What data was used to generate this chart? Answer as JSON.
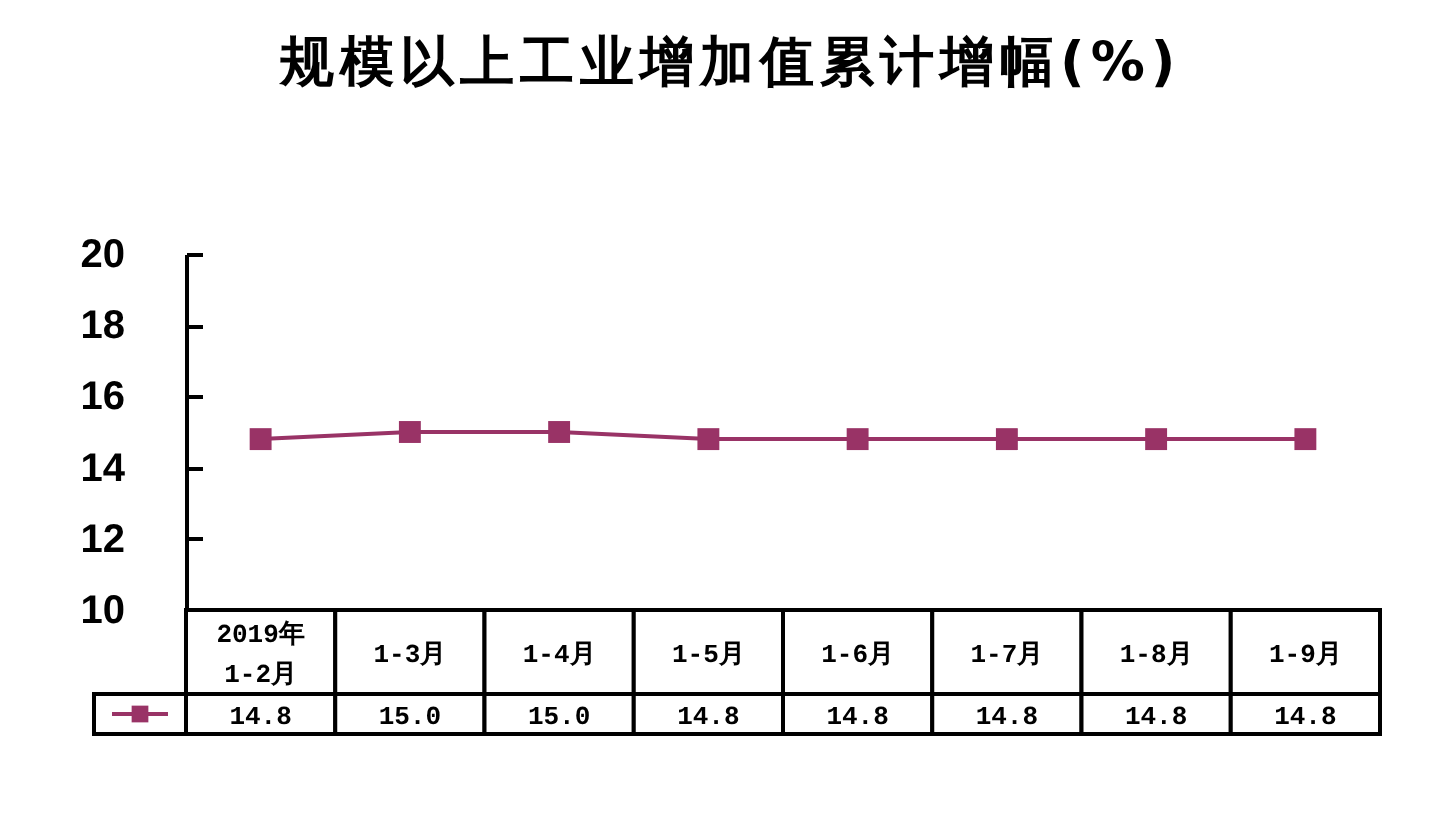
{
  "chart_data": {
    "type": "line",
    "title": "规模以上工业增加值累计增幅(%)",
    "categories": [
      "2019年\n1-2月",
      "1-3月",
      "1-4月",
      "1-5月",
      "1-6月",
      "1-7月",
      "1-8月",
      "1-9月"
    ],
    "series": [
      {
        "color": "#993366",
        "values": [
          14.8,
          15.0,
          15.0,
          14.8,
          14.8,
          14.8,
          14.8,
          14.8
        ],
        "value_labels": [
          "14.8",
          "15.0",
          "15.0",
          "14.8",
          "14.8",
          "14.8",
          "14.8",
          "14.8"
        ]
      }
    ],
    "ylim": [
      10,
      20
    ],
    "yticks": [
      10,
      12,
      14,
      16,
      18,
      20
    ],
    "marker": "square",
    "line_style": "solid"
  }
}
